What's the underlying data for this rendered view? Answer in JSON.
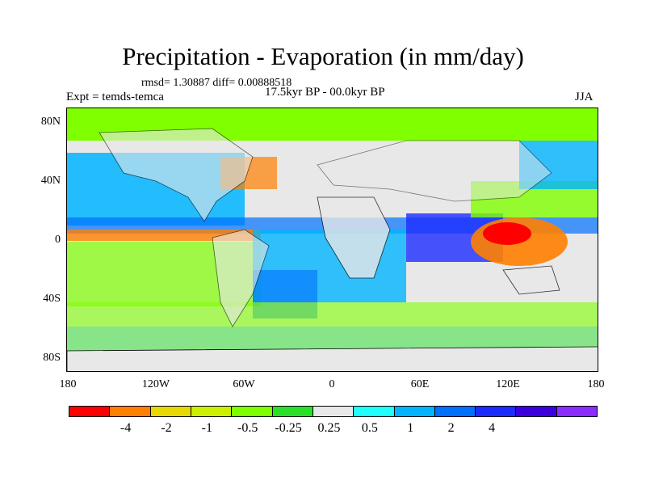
{
  "figure": {
    "title": "Precipitation - Evaporation (in mm/day)",
    "stats": "rmsd= 1.30887 diff= 0.00888518",
    "experiment": "Expt = temds-temca",
    "period": "17.5kyr BP - 00.0kyr BP",
    "season": "JJA"
  },
  "axes": {
    "y_ticks": [
      {
        "label": "80N",
        "lat": 80
      },
      {
        "label": "40N",
        "lat": 40
      },
      {
        "label": "0",
        "lat": 0
      },
      {
        "label": "40S",
        "lat": -40
      },
      {
        "label": "80S",
        "lat": -80
      }
    ],
    "x_ticks": [
      {
        "label": "180",
        "lon": -180
      },
      {
        "label": "120W",
        "lon": -120
      },
      {
        "label": "60W",
        "lon": -60
      },
      {
        "label": "0",
        "lon": 0
      },
      {
        "label": "60E",
        "lon": 60
      },
      {
        "label": "120E",
        "lon": 120
      },
      {
        "label": "180",
        "lon": 180
      }
    ],
    "lat_range": [
      -90,
      90
    ],
    "lon_range": [
      -180,
      180
    ]
  },
  "colorbar": {
    "colors": [
      "#ff0000",
      "#ff8000",
      "#e6d800",
      "#ccf000",
      "#80ff00",
      "#28e028",
      "#e8e8e8",
      "#20ffff",
      "#00b4ff",
      "#0070ff",
      "#1c2cff",
      "#3c00e0",
      "#8c2cff"
    ],
    "labels": [
      "-4",
      "-2",
      "-1",
      "-0.5",
      "-0.25",
      "0.25",
      "0.5",
      "1",
      "2",
      "4"
    ]
  }
}
